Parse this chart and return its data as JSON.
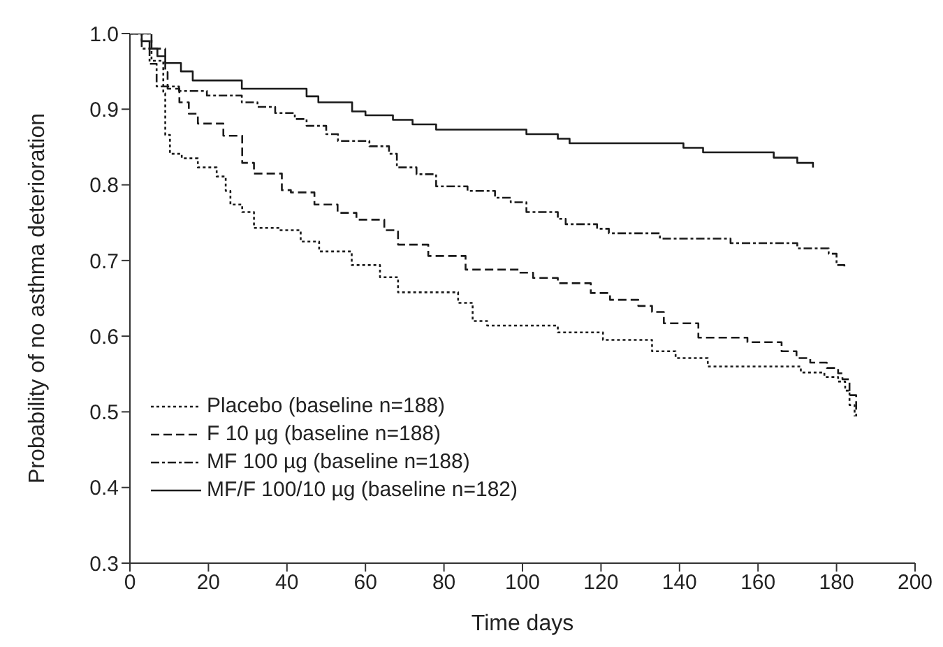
{
  "chart_data": {
    "type": "step",
    "xlabel": "Time days",
    "ylabel": "Probability of no asthma deterioration",
    "xlim": [
      0,
      200
    ],
    "xticks": [
      0,
      20,
      40,
      60,
      80,
      100,
      120,
      140,
      160,
      180,
      200
    ],
    "ylim": [
      0.3,
      1
    ],
    "yticks": [
      0.3,
      0.4,
      0.5,
      0.6,
      0.7,
      0.8,
      0.9,
      {
        "value": 1,
        "label": "1.0"
      }
    ],
    "legend": "bottom left",
    "series": [
      {
        "name": "Placebo (baseline n=188)",
        "color": "#1a1a1a",
        "line_style": "dotted",
        "x": [
          0,
          5.5,
          8.5,
          9,
          10.2,
          13.2,
          17.3,
          22.1,
          24.4,
          25.6,
          28.6,
          31.6,
          38.1,
          43.5,
          48.2,
          56.5,
          63.7,
          68.3,
          83.6,
          87.3,
          91,
          109,
          120.5,
          133,
          139,
          147.2,
          170.9,
          176.9,
          180.4,
          182.2,
          183.3,
          184.6
        ],
        "values": [
          1,
          0.964,
          0.921,
          0.866,
          0.841,
          0.835,
          0.823,
          0.811,
          0.792,
          0.774,
          0.764,
          0.743,
          0.74,
          0.725,
          0.712,
          0.694,
          0.678,
          0.658,
          0.644,
          0.62,
          0.614,
          0.605,
          0.595,
          0.58,
          0.571,
          0.56,
          0.552,
          0.546,
          0.54,
          0.528,
          0.509,
          0.494
        ]
      },
      {
        "name": "F 10 µg (baseline n=188)",
        "color": "#1a1a1a",
        "line_style": "dashed",
        "x": [
          0,
          5.5,
          9,
          9.6,
          12.6,
          15,
          17.3,
          23.8,
          28.6,
          31.6,
          38.7,
          41,
          47,
          52.9,
          57.7,
          64.8,
          68.3,
          76,
          85.5,
          99.2,
          102.7,
          109,
          117.4,
          122.3,
          129.5,
          133,
          136,
          144.8,
          157.3,
          166,
          169.8,
          173.3,
          177.5,
          180.4,
          181.5,
          183.3,
          185
        ],
        "values": [
          1,
          0.98,
          0.949,
          0.927,
          0.909,
          0.894,
          0.881,
          0.865,
          0.829,
          0.815,
          0.793,
          0.79,
          0.774,
          0.763,
          0.754,
          0.74,
          0.721,
          0.706,
          0.688,
          0.684,
          0.677,
          0.67,
          0.657,
          0.648,
          0.64,
          0.632,
          0.617,
          0.598,
          0.592,
          0.58,
          0.571,
          0.565,
          0.558,
          0.551,
          0.543,
          0.522,
          0.494
        ]
      },
      {
        "name": "MF 100 µg (baseline n=188)",
        "color": "#1a1a1a",
        "line_style": "dashdot",
        "x": [
          0,
          3,
          5,
          6.8,
          12.5,
          19.6,
          28.5,
          32.5,
          37,
          42,
          45,
          50,
          53,
          61,
          66,
          68,
          73,
          78,
          86,
          93,
          97,
          101,
          109,
          111,
          119,
          122,
          135,
          153,
          170,
          178,
          180,
          182
        ],
        "values": [
          1,
          0.98,
          0.96,
          0.93,
          0.924,
          0.918,
          0.909,
          0.903,
          0.895,
          0.887,
          0.878,
          0.867,
          0.858,
          0.851,
          0.841,
          0.823,
          0.814,
          0.798,
          0.792,
          0.783,
          0.777,
          0.764,
          0.755,
          0.748,
          0.742,
          0.736,
          0.729,
          0.723,
          0.716,
          0.709,
          0.694,
          0.691
        ]
      },
      {
        "name": "MF/F 100/10 µg (baseline n=182)",
        "color": "#1a1a1a",
        "line_style": "solid",
        "x": [
          0,
          3,
          5,
          7,
          9,
          13,
          16,
          28.5,
          45,
          48,
          56.6,
          60,
          67,
          72,
          78,
          101,
          109,
          112,
          141,
          146,
          164,
          170,
          174
        ],
        "values": [
          1,
          0.99,
          0.98,
          0.97,
          0.961,
          0.95,
          0.938,
          0.927,
          0.917,
          0.909,
          0.897,
          0.892,
          0.886,
          0.88,
          0.873,
          0.867,
          0.861,
          0.855,
          0.849,
          0.843,
          0.836,
          0.829,
          0.823
        ]
      }
    ]
  }
}
